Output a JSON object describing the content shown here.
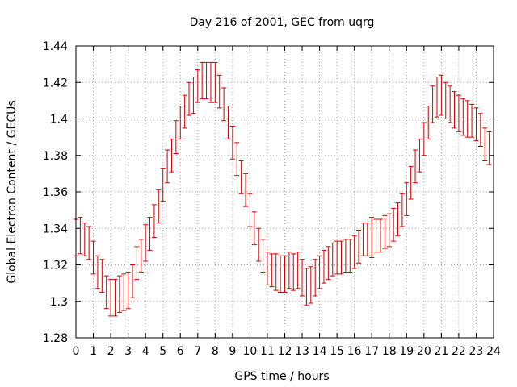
{
  "chart_data": {
    "type": "scatter",
    "title": "Day 216 of 2001, GEC from uqrg",
    "xlabel": "GPS time / hours",
    "ylabel": "Global Electron Content / GECUs",
    "xlim": [
      0,
      24
    ],
    "ylim": [
      1.28,
      1.44
    ],
    "xticks": [
      "0",
      "1",
      "2",
      "3",
      "4",
      "5",
      "6",
      "7",
      "8",
      "9",
      "10",
      "11",
      "12",
      "13",
      "14",
      "15",
      "16",
      "17",
      "18",
      "19",
      "20",
      "21",
      "22",
      "23",
      "24"
    ],
    "yticks": [
      "1.28",
      "1.3",
      "1.32",
      "1.34",
      "1.36",
      "1.38",
      "1.4",
      "1.42",
      "1.44"
    ],
    "grid": true,
    "error_color": "#d00000",
    "series": [
      {
        "x": [
          0.0,
          0.25,
          0.5,
          0.75,
          1.0,
          1.25,
          1.5,
          1.75,
          2.0,
          2.25,
          2.5,
          2.75,
          3.0,
          3.25,
          3.5,
          3.75,
          4.0,
          4.25,
          4.5,
          4.75,
          5.0,
          5.25,
          5.5,
          5.75,
          6.0,
          6.25,
          6.5,
          6.75,
          7.0,
          7.25,
          7.5,
          7.75,
          8.0,
          8.25,
          8.5,
          8.75,
          9.0,
          9.25,
          9.5,
          9.75,
          10.0,
          10.25,
          10.5,
          10.75,
          11.0,
          11.25,
          11.5,
          11.75,
          12.0,
          12.25,
          12.5,
          12.75,
          13.0,
          13.25,
          13.5,
          13.75,
          14.0,
          14.25,
          14.5,
          14.75,
          15.0,
          15.25,
          15.5,
          15.75,
          16.0,
          16.25,
          16.5,
          16.75,
          17.0,
          17.25,
          17.5,
          17.75,
          18.0,
          18.25,
          18.5,
          18.75,
          19.0,
          19.25,
          19.5,
          19.75,
          20.0,
          20.25,
          20.5,
          20.75,
          21.0,
          21.25,
          21.5,
          21.75,
          22.0,
          22.25,
          22.5,
          22.75,
          23.0,
          23.25,
          23.5,
          23.75
        ],
        "y": [
          1.335,
          1.336,
          1.334,
          1.332,
          1.324,
          1.316,
          1.314,
          1.305,
          1.302,
          1.302,
          1.304,
          1.305,
          1.306,
          1.311,
          1.321,
          1.325,
          1.332,
          1.337,
          1.344,
          1.352,
          1.364,
          1.374,
          1.38,
          1.39,
          1.398,
          1.404,
          1.411,
          1.413,
          1.418,
          1.421,
          1.421,
          1.42,
          1.42,
          1.415,
          1.408,
          1.398,
          1.387,
          1.378,
          1.368,
          1.361,
          1.35,
          1.34,
          1.331,
          1.325,
          1.318,
          1.317,
          1.316,
          1.315,
          1.315,
          1.317,
          1.316,
          1.317,
          1.313,
          1.308,
          1.309,
          1.313,
          1.316,
          1.319,
          1.321,
          1.323,
          1.324,
          1.324,
          1.325,
          1.325,
          1.327,
          1.33,
          1.334,
          1.334,
          1.335,
          1.336,
          1.336,
          1.338,
          1.339,
          1.342,
          1.345,
          1.35,
          1.356,
          1.365,
          1.374,
          1.38,
          1.389,
          1.398,
          1.408,
          1.412,
          1.413,
          1.41,
          1.408,
          1.405,
          1.403,
          1.401,
          1.4,
          1.399,
          1.397,
          1.394,
          1.386,
          1.384
        ],
        "err": [
          0.01,
          0.01,
          0.009,
          0.009,
          0.009,
          0.009,
          0.009,
          0.009,
          0.01,
          0.01,
          0.01,
          0.01,
          0.01,
          0.009,
          0.009,
          0.009,
          0.01,
          0.009,
          0.009,
          0.009,
          0.009,
          0.009,
          0.009,
          0.009,
          0.009,
          0.009,
          0.009,
          0.01,
          0.009,
          0.01,
          0.01,
          0.011,
          0.011,
          0.009,
          0.009,
          0.009,
          0.009,
          0.009,
          0.009,
          0.009,
          0.009,
          0.009,
          0.009,
          0.009,
          0.009,
          0.009,
          0.01,
          0.01,
          0.01,
          0.01,
          0.01,
          0.01,
          0.01,
          0.01,
          0.01,
          0.01,
          0.009,
          0.009,
          0.009,
          0.009,
          0.009,
          0.009,
          0.009,
          0.009,
          0.009,
          0.009,
          0.009,
          0.009,
          0.011,
          0.009,
          0.009,
          0.009,
          0.009,
          0.009,
          0.009,
          0.009,
          0.009,
          0.009,
          0.009,
          0.009,
          0.009,
          0.009,
          0.01,
          0.011,
          0.011,
          0.01,
          0.01,
          0.01,
          0.01,
          0.01,
          0.01,
          0.009,
          0.009,
          0.009,
          0.009,
          0.009
        ]
      }
    ]
  }
}
